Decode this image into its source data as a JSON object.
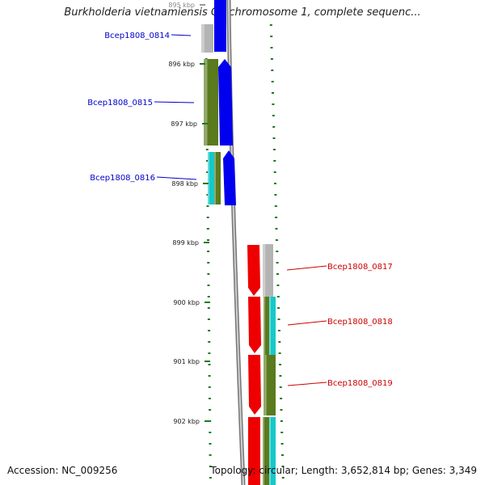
{
  "title": "Burkholderia vietnamiensis G4 chromosome 1, complete sequenc...",
  "footer": {
    "accession": "Accession: NC_009256",
    "summary": "Topology: circular; Length: 3,652,814 bp; Genes: 3,349"
  },
  "scale_labels": [
    "895 kbp",
    "896 kbp",
    "897 kbp",
    "898 kbp",
    "899 kbp",
    "900 kbp",
    "901 kbp",
    "902 kbp"
  ],
  "genes": [
    {
      "name": "Bcep1808_0814",
      "strand": "-",
      "label_color": "#0000cc"
    },
    {
      "name": "Bcep1808_0815",
      "strand": "-",
      "label_color": "#0000cc"
    },
    {
      "name": "Bcep1808_0816",
      "strand": "-",
      "label_color": "#0000cc"
    },
    {
      "name": "Bcep1808_0817",
      "strand": "+",
      "label_color": "#cc0000"
    },
    {
      "name": "Bcep1808_0818",
      "strand": "+",
      "label_color": "#cc0000"
    },
    {
      "name": "Bcep1808_0819",
      "strand": "+",
      "label_color": "#cc0000"
    }
  ],
  "colors": {
    "minus_strand": "#0000ee",
    "plus_strand": "#ee0000",
    "backbone": "#999999",
    "gc_skew": "#1a7a1a",
    "track_gray": "#b4b4b4",
    "track_olive": "#5a7a1e",
    "track_cyan": "#16c8c8"
  }
}
